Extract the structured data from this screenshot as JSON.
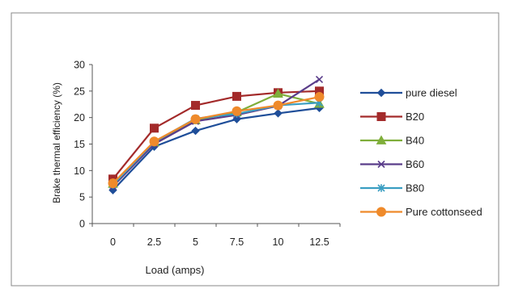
{
  "chart_data": {
    "type": "line",
    "title": "",
    "xlabel": "Load (amps)",
    "ylabel": "Brake thermal efficiency (%)",
    "x": [
      "0",
      "2.5",
      "5",
      "7.5",
      "10",
      "12.5"
    ],
    "ylim": [
      0,
      30
    ],
    "yticks": [
      0,
      5,
      10,
      15,
      20,
      25,
      30
    ],
    "grid": false,
    "legend_position": "right",
    "series": [
      {
        "name": "pure diesel",
        "color": "#1f4e99",
        "marker": "diamond",
        "values": [
          6.3,
          14.5,
          17.5,
          19.7,
          20.8,
          21.8
        ]
      },
      {
        "name": "B20",
        "color": "#a32a2a",
        "marker": "square",
        "values": [
          8.4,
          18.0,
          22.3,
          24.0,
          24.7,
          25.0
        ]
      },
      {
        "name": "B40",
        "color": "#7fae3a",
        "marker": "triangle",
        "values": [
          7.5,
          15.3,
          19.5,
          21.0,
          24.5,
          22.6
        ]
      },
      {
        "name": "B60",
        "color": "#5a3d8a",
        "marker": "x",
        "values": [
          7.0,
          15.0,
          19.3,
          20.5,
          22.2,
          27.2
        ]
      },
      {
        "name": "B80",
        "color": "#3a9ec2",
        "marker": "star",
        "values": [
          7.3,
          15.4,
          19.8,
          20.7,
          22.3,
          22.8
        ]
      },
      {
        "name": "Pure cottonseed",
        "color": "#ef8a2b",
        "marker": "circle",
        "values": [
          7.6,
          15.5,
          19.7,
          21.2,
          22.3,
          23.9
        ]
      }
    ]
  }
}
